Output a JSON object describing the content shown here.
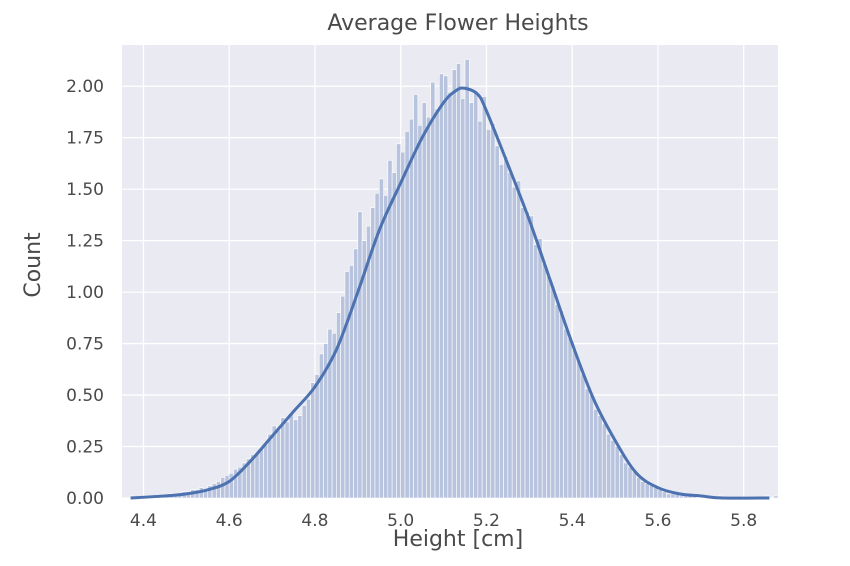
{
  "chart_data": {
    "type": "bar",
    "title": "Average Flower Heights",
    "xlabel": "Height [cm]",
    "ylabel": "Count",
    "xlim": [
      4.35,
      5.88
    ],
    "ylim": [
      0,
      2.2
    ],
    "x_ticks": [
      4.4,
      4.6,
      4.8,
      5.0,
      5.2,
      5.4,
      5.6,
      5.8
    ],
    "x_tick_labels": [
      "4.4",
      "4.6",
      "4.8",
      "5.0",
      "5.2",
      "5.4",
      "5.6",
      "5.8"
    ],
    "y_ticks": [
      0,
      0.25,
      0.5,
      0.75,
      1.0,
      1.25,
      1.5,
      1.75,
      2.0
    ],
    "y_tick_labels": [
      "0.00",
      "0.25",
      "0.50",
      "0.75",
      "1.00",
      "1.25",
      "1.50",
      "1.75",
      "2.00"
    ],
    "grid": true,
    "colors": {
      "background": "#eaeaf2",
      "grid": "#ffffff",
      "bar_fill": "#b8c3de",
      "bar_edge": "#ffffff",
      "kde_line": "#4c72b0",
      "text": "#4a4a4a"
    },
    "histogram": {
      "bin_start": 4.37,
      "bin_width": 0.01,
      "counts": [
        0.01,
        0.0,
        0.0,
        0.01,
        0.0,
        0.01,
        0.01,
        0.01,
        0.01,
        0.02,
        0.02,
        0.02,
        0.03,
        0.03,
        0.04,
        0.04,
        0.05,
        0.04,
        0.06,
        0.07,
        0.08,
        0.1,
        0.11,
        0.12,
        0.14,
        0.15,
        0.17,
        0.19,
        0.21,
        0.22,
        0.24,
        0.26,
        0.31,
        0.35,
        0.33,
        0.39,
        0.37,
        0.41,
        0.38,
        0.4,
        0.45,
        0.48,
        0.56,
        0.6,
        0.7,
        0.75,
        0.82,
        0.8,
        0.9,
        0.98,
        1.1,
        1.13,
        1.21,
        1.39,
        1.25,
        1.32,
        1.41,
        1.48,
        1.55,
        1.47,
        1.64,
        1.58,
        1.72,
        1.68,
        1.78,
        1.84,
        1.96,
        1.81,
        1.92,
        1.85,
        2.02,
        1.89,
        2.06,
        2.05,
        1.97,
        2.08,
        2.11,
        1.94,
        2.13,
        1.92,
        1.98,
        1.83,
        1.95,
        1.79,
        1.82,
        1.71,
        1.62,
        1.66,
        1.58,
        1.51,
        1.54,
        1.41,
        1.39,
        1.37,
        1.23,
        1.26,
        1.14,
        1.08,
        1.03,
        0.94,
        0.91,
        0.82,
        0.78,
        0.72,
        0.67,
        0.6,
        0.53,
        0.5,
        0.43,
        0.4,
        0.36,
        0.31,
        0.28,
        0.25,
        0.21,
        0.17,
        0.15,
        0.13,
        0.1,
        0.08,
        0.07,
        0.06,
        0.05,
        0.04,
        0.03,
        0.02,
        0.02,
        0.02,
        0.01,
        0.01,
        0.01,
        0.01,
        0.0,
        0.01,
        0.0,
        0.0,
        0.0,
        0.01,
        0.0,
        0.0,
        0.0,
        0.0,
        0.0,
        0.0,
        0.0,
        0.0,
        0.0,
        0.0,
        0.01,
        0.0,
        0.01
      ]
    },
    "kde": {
      "x": [
        4.37,
        4.45,
        4.5,
        4.55,
        4.6,
        4.65,
        4.7,
        4.75,
        4.8,
        4.85,
        4.9,
        4.95,
        5.0,
        5.05,
        5.1,
        5.13,
        5.15,
        5.18,
        5.2,
        5.25,
        5.3,
        5.35,
        5.4,
        5.45,
        5.5,
        5.55,
        5.6,
        5.65,
        5.7,
        5.75,
        5.86
      ],
      "y": [
        0.0,
        0.01,
        0.02,
        0.04,
        0.08,
        0.18,
        0.3,
        0.42,
        0.54,
        0.72,
        1.0,
        1.3,
        1.53,
        1.75,
        1.92,
        1.98,
        1.99,
        1.96,
        1.88,
        1.62,
        1.35,
        1.05,
        0.75,
        0.48,
        0.28,
        0.12,
        0.05,
        0.02,
        0.01,
        0.0,
        0.0
      ]
    }
  }
}
